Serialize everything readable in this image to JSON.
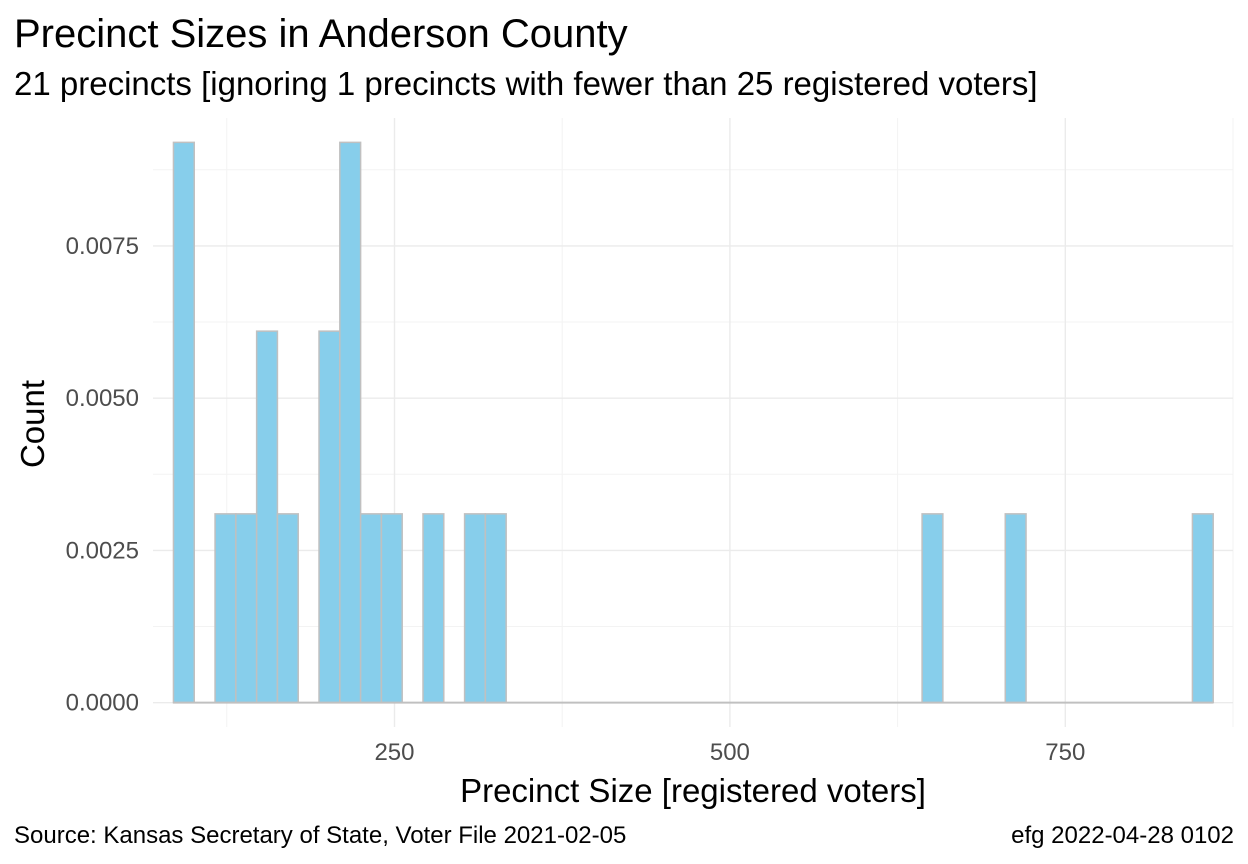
{
  "chart_data": {
    "type": "bar",
    "title": "Precinct Sizes in Anderson County",
    "subtitle": "21 precincts [ignoring 1 precincts with fewer than 25 registered voters]",
    "xlabel": "Precinct Size [registered voters]",
    "ylabel": "Count",
    "xlim": [
      70,
      875
    ],
    "ylim": [
      -0.0004,
      0.0096
    ],
    "x_ticks": [
      250,
      500,
      750
    ],
    "y_ticks": [
      0.0,
      0.0025,
      0.005,
      0.0075
    ],
    "y_tick_labels": [
      "0.0000",
      "0.0025",
      "0.0050",
      "0.0075"
    ],
    "x_tick_labels": [
      "250",
      "500",
      "750"
    ],
    "grid": true,
    "bin_width": 15.5,
    "bins": [
      {
        "x": 93,
        "value": 0.0092
      },
      {
        "x": 124,
        "value": 0.0031
      },
      {
        "x": 139.5,
        "value": 0.0031
      },
      {
        "x": 155,
        "value": 0.0061
      },
      {
        "x": 170.5,
        "value": 0.0031
      },
      {
        "x": 201.5,
        "value": 0.0061
      },
      {
        "x": 217,
        "value": 0.0092
      },
      {
        "x": 232.5,
        "value": 0.0031
      },
      {
        "x": 248,
        "value": 0.0031
      },
      {
        "x": 279,
        "value": 0.0031
      },
      {
        "x": 310,
        "value": 0.0031
      },
      {
        "x": 325.5,
        "value": 0.0031
      },
      {
        "x": 651,
        "value": 0.0031
      },
      {
        "x": 713,
        "value": 0.0031
      },
      {
        "x": 852.5,
        "value": 0.0031
      }
    ],
    "baseline_range": [
      85,
      860
    ],
    "colors": {
      "fill": "#87ceeb",
      "outline": "#c0c0c0"
    }
  },
  "caption": {
    "source": "Source:  Kansas Secretary of State, Voter File  2021-02-05",
    "credit": "efg 2022-04-28 0102"
  }
}
